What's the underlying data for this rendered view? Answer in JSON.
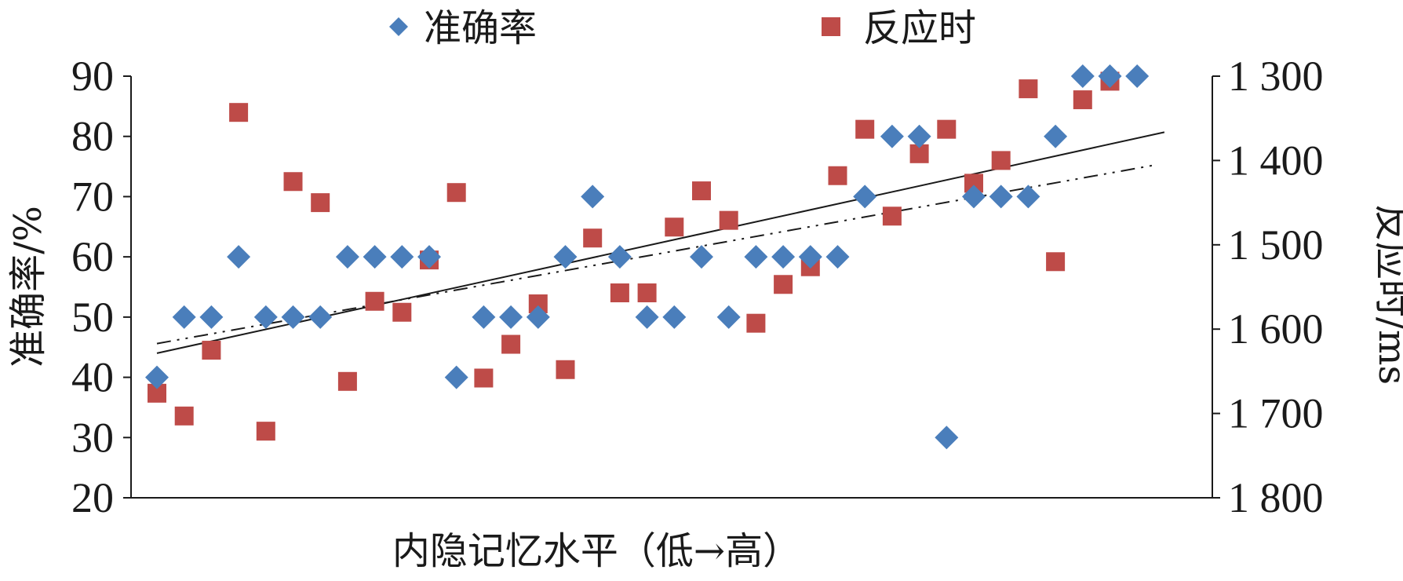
{
  "chart_data": {
    "type": "scatter",
    "title": "",
    "xlabel": "内隐记忆水平（低→高）",
    "ylabel_left": "准确率/%",
    "ylabel_right": "反应时/ms",
    "y_left_ticks": [
      "20",
      "30",
      "40",
      "50",
      "60",
      "70",
      "80",
      "90"
    ],
    "y_left_range": [
      20,
      90
    ],
    "y_right_ticks": [
      "1 300",
      "1 400",
      "1 500",
      "1 600",
      "1 700",
      "1 800"
    ],
    "y_right_range": [
      1800,
      1300
    ],
    "grid": false,
    "legend_position": "top",
    "x_range": [
      0,
      38
    ],
    "series": [
      {
        "name": "准确率",
        "axis": "left",
        "marker": "diamond",
        "color": "#4a7ebb",
        "x": [
          1,
          2,
          3,
          4,
          5,
          6,
          7,
          8,
          9,
          10,
          11,
          12,
          13,
          14,
          15,
          16,
          17,
          18,
          19,
          20,
          21,
          22,
          23,
          24,
          25,
          26,
          27,
          28,
          29,
          30,
          31,
          32,
          33,
          34,
          35,
          36,
          37
        ],
        "y": [
          40,
          50,
          50,
          60,
          50,
          50,
          50,
          60,
          60,
          60,
          60,
          40,
          50,
          50,
          50,
          60,
          70,
          60,
          50,
          50,
          60,
          50,
          60,
          60,
          60,
          60,
          70,
          80,
          80,
          30,
          70,
          70,
          70,
          80,
          90,
          90,
          90
        ]
      },
      {
        "name": "反应时",
        "axis": "right",
        "marker": "square",
        "color": "#be4b48",
        "x": [
          1,
          2,
          3,
          4,
          5,
          6,
          7,
          8,
          9,
          10,
          11,
          12,
          13,
          14,
          15,
          16,
          17,
          18,
          19,
          20,
          21,
          22,
          23,
          24,
          25,
          26,
          27,
          28,
          29,
          30,
          31,
          32,
          33,
          34,
          35,
          36,
          37
        ],
        "y": [
          1676,
          1703,
          1625,
          1343,
          1721,
          1425,
          1450,
          1662,
          1567,
          1580,
          1518,
          1438,
          1658,
          1618,
          1570,
          1648,
          1492,
          1557,
          1557,
          1479,
          1436,
          1471,
          1593,
          1547,
          1526,
          1418,
          1363,
          1466,
          1392,
          1363,
          1427,
          1400,
          1315,
          1520,
          1328,
          1306,
          null
        ]
      }
    ],
    "trendlines": [
      {
        "style": "solid",
        "x": [
          1,
          38
        ],
        "y_left": [
          44,
          80.7
        ]
      },
      {
        "style": "dash-dot",
        "x": [
          1,
          37.6
        ],
        "y_left": [
          45.6,
          75.2
        ]
      }
    ]
  }
}
